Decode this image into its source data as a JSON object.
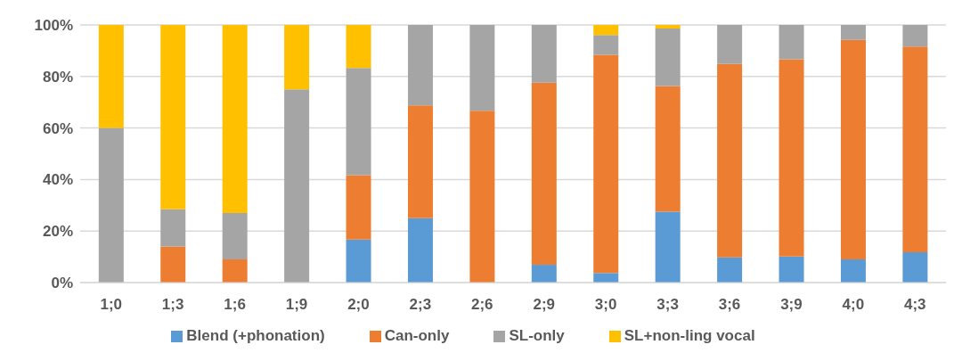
{
  "chart_data": {
    "type": "bar",
    "stacked": true,
    "categories": [
      "1;0",
      "1;3",
      "1;6",
      "1;9",
      "2;0",
      "2;3",
      "2;6",
      "2;9",
      "3;0",
      "3;3",
      "3;6",
      "3;9",
      "4;0",
      "4;3"
    ],
    "series": [
      {
        "name": "Blend (+phonation)",
        "color": "#5b9bd5",
        "values": [
          0,
          0,
          0,
          0,
          16.7,
          25,
          0,
          6.9,
          3.7,
          27.5,
          9.8,
          10.1,
          9.0,
          11.8
        ]
      },
      {
        "name": "Can-only",
        "color": "#ed7d31",
        "values": [
          0,
          14,
          9,
          0,
          25,
          43.8,
          66.7,
          70.7,
          84.7,
          48.8,
          75.1,
          76.6,
          85.2,
          79.8
        ]
      },
      {
        "name": "SL-only",
        "color": "#a5a5a5",
        "values": [
          60,
          14.5,
          18,
          75,
          41.6,
          31.2,
          33.3,
          22.4,
          7.7,
          22.3,
          15.1,
          13.3,
          5.8,
          8.4
        ]
      },
      {
        "name": "SL+non-ling vocal",
        "color": "#ffc000",
        "values": [
          40,
          71.5,
          73,
          25,
          16.7,
          0,
          0,
          0,
          3.9,
          1.4,
          0,
          0,
          0,
          0
        ]
      }
    ],
    "ylim": [
      0,
      100
    ],
    "yticks": [
      {
        "value": 0,
        "label": "0%"
      },
      {
        "value": 20,
        "label": "20%"
      },
      {
        "value": 40,
        "label": "40%"
      },
      {
        "value": 60,
        "label": "60%"
      },
      {
        "value": 80,
        "label": "80%"
      },
      {
        "value": 100,
        "label": "100%"
      }
    ],
    "grid": "y",
    "legend": "bottom"
  }
}
